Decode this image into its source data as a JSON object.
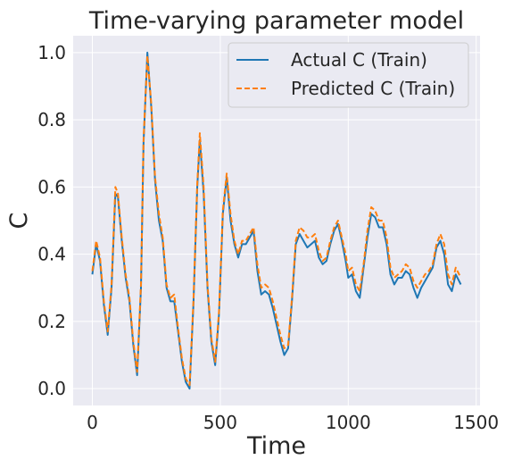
{
  "chart_data": {
    "type": "line",
    "title": "Time-varying parameter model",
    "xlabel": "Time",
    "ylabel": "C",
    "xlim": [
      -75,
      1515
    ],
    "ylim": [
      -0.05,
      1.05
    ],
    "xticks": [
      0,
      500,
      1000,
      1500
    ],
    "yticks": [
      0.0,
      0.2,
      0.4,
      0.6,
      0.8,
      1.0
    ],
    "grid": true,
    "legend_position": "top-right",
    "x": [
      0,
      15,
      30,
      45,
      60,
      75,
      90,
      100,
      115,
      130,
      145,
      160,
      175,
      190,
      200,
      215,
      230,
      245,
      260,
      275,
      290,
      305,
      320,
      335,
      350,
      365,
      380,
      395,
      410,
      420,
      435,
      450,
      465,
      480,
      495,
      510,
      525,
      540,
      555,
      570,
      585,
      600,
      615,
      630,
      645,
      660,
      675,
      690,
      705,
      720,
      735,
      750,
      765,
      780,
      795,
      810,
      825,
      840,
      855,
      870,
      885,
      900,
      915,
      930,
      945,
      960,
      975,
      990,
      1000,
      1015,
      1030,
      1045,
      1060,
      1075,
      1090,
      1105,
      1120,
      1135,
      1150,
      1165,
      1180,
      1195,
      1210,
      1225,
      1240,
      1255,
      1270,
      1285,
      1300,
      1315,
      1330,
      1345,
      1360,
      1375,
      1390,
      1405,
      1420,
      1440
    ],
    "series": [
      {
        "name": "Actual C (Train)",
        "color": "#1f77b4",
        "style": "solid",
        "values": [
          0.34,
          0.43,
          0.38,
          0.25,
          0.16,
          0.3,
          0.58,
          0.57,
          0.44,
          0.33,
          0.26,
          0.13,
          0.04,
          0.3,
          0.73,
          1.0,
          0.84,
          0.62,
          0.5,
          0.44,
          0.3,
          0.26,
          0.26,
          0.17,
          0.08,
          0.02,
          0.0,
          0.25,
          0.6,
          0.74,
          0.58,
          0.3,
          0.14,
          0.07,
          0.22,
          0.52,
          0.63,
          0.5,
          0.43,
          0.39,
          0.43,
          0.43,
          0.45,
          0.47,
          0.35,
          0.28,
          0.29,
          0.28,
          0.24,
          0.19,
          0.14,
          0.1,
          0.12,
          0.26,
          0.43,
          0.46,
          0.44,
          0.42,
          0.43,
          0.44,
          0.39,
          0.37,
          0.38,
          0.43,
          0.47,
          0.49,
          0.44,
          0.38,
          0.33,
          0.34,
          0.29,
          0.27,
          0.36,
          0.45,
          0.52,
          0.51,
          0.48,
          0.48,
          0.43,
          0.34,
          0.31,
          0.33,
          0.33,
          0.35,
          0.34,
          0.3,
          0.27,
          0.3,
          0.32,
          0.34,
          0.36,
          0.42,
          0.44,
          0.4,
          0.31,
          0.29,
          0.34,
          0.31
        ]
      },
      {
        "name": "Predicted C (Train)",
        "color": "#ff7f0e",
        "style": "dashed",
        "values": [
          0.35,
          0.44,
          0.39,
          0.26,
          0.17,
          0.31,
          0.6,
          0.58,
          0.45,
          0.34,
          0.27,
          0.14,
          0.05,
          0.31,
          0.74,
          0.99,
          0.85,
          0.63,
          0.52,
          0.45,
          0.31,
          0.27,
          0.28,
          0.18,
          0.09,
          0.03,
          0.01,
          0.26,
          0.61,
          0.76,
          0.6,
          0.31,
          0.15,
          0.08,
          0.23,
          0.53,
          0.64,
          0.52,
          0.44,
          0.4,
          0.44,
          0.44,
          0.46,
          0.48,
          0.37,
          0.3,
          0.31,
          0.3,
          0.26,
          0.21,
          0.16,
          0.12,
          0.13,
          0.27,
          0.44,
          0.48,
          0.47,
          0.45,
          0.45,
          0.46,
          0.41,
          0.38,
          0.39,
          0.44,
          0.48,
          0.5,
          0.45,
          0.4,
          0.35,
          0.36,
          0.31,
          0.29,
          0.37,
          0.47,
          0.54,
          0.53,
          0.5,
          0.5,
          0.45,
          0.36,
          0.33,
          0.34,
          0.35,
          0.37,
          0.36,
          0.32,
          0.3,
          0.32,
          0.34,
          0.35,
          0.37,
          0.43,
          0.46,
          0.43,
          0.34,
          0.31,
          0.36,
          0.33
        ]
      }
    ]
  }
}
